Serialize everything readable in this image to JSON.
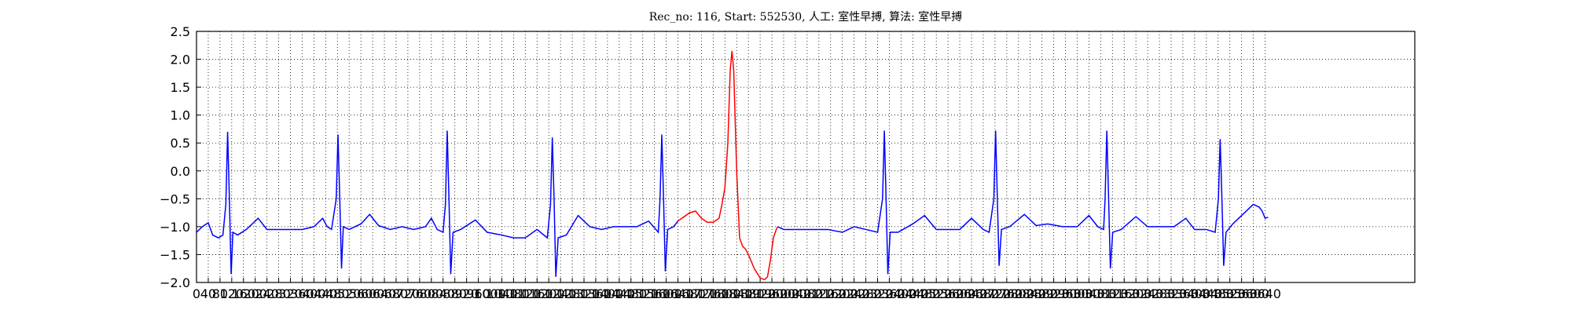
{
  "chart_data": {
    "type": "line",
    "title": "Rec_no: 116, Start: 552530, 人工: 室性早搏, 算法: 室性早搏",
    "xlim": [
      0,
      4150
    ],
    "ylim": [
      -2,
      2.5
    ],
    "xticks": [
      0,
      40,
      80,
      120,
      160,
      200,
      240,
      280,
      320,
      360,
      400,
      440,
      480,
      520,
      560,
      600,
      640,
      680,
      720,
      760,
      800,
      840,
      880,
      920,
      960,
      1000,
      1040,
      1080,
      1120,
      1160,
      1200,
      1240,
      1280,
      1320,
      1360,
      1400,
      1440,
      1480,
      1520,
      1560,
      1600,
      1640,
      1680,
      1720,
      1760,
      1800,
      1840,
      1880,
      1920,
      1960,
      2000,
      2040,
      2080,
      2120,
      2160,
      2200,
      2240,
      2280,
      2320,
      2360,
      2400,
      2440,
      2480,
      2520,
      2560,
      2600,
      2640,
      2680,
      2720,
      2760,
      2800,
      2840,
      2880,
      2920,
      2960,
      3000,
      3040,
      3080,
      3120,
      3160,
      3200,
      3240,
      3280,
      3320,
      3360,
      3400,
      3440,
      3480,
      3520,
      3560,
      3600,
      3640
    ],
    "yticks": [
      {
        "value": -2,
        "label": "−2.0"
      },
      {
        "value": -1.5,
        "label": "−1.5"
      },
      {
        "value": -1,
        "label": "−1.0"
      },
      {
        "value": -0.5,
        "label": "−0.5"
      },
      {
        "value": 0,
        "label": "0.0"
      },
      {
        "value": 0.5,
        "label": "0.5"
      },
      {
        "value": 1,
        "label": "1.0"
      },
      {
        "value": 1.5,
        "label": "1.5"
      },
      {
        "value": 2,
        "label": "2.0"
      },
      {
        "value": 2.5,
        "label": "2.5"
      }
    ],
    "grid": true,
    "series": [
      {
        "color": "#0000ff",
        "x": [
          0,
          20,
          40,
          55,
          75,
          90,
          100,
          106,
          112,
          118,
          124,
          140,
          170,
          210,
          240,
          280,
          320,
          360,
          400,
          430,
          445,
          460,
          476,
          482,
          488,
          494,
          500,
          520,
          560,
          590,
          620,
          660,
          700,
          740,
          780,
          800,
          820,
          840,
          848,
          854,
          860,
          866,
          874,
          900,
          950,
          990,
          1040,
          1080,
          1120,
          1160,
          1195,
          1206,
          1212,
          1218,
          1224,
          1232,
          1260,
          1300,
          1340,
          1380,
          1420,
          1460,
          1500,
          1540,
          1565,
          1573,
          1579,
          1585,
          1591,
          1597,
          1605,
          1625,
          1640,
          1810,
          1980,
          2000,
          2050,
          2100,
          2150,
          2200,
          2240,
          2280,
          2320,
          2337,
          2343,
          2349,
          2355,
          2363,
          2390,
          2440,
          2480,
          2520,
          2560,
          2600,
          2640,
          2680,
          2700,
          2716,
          2722,
          2728,
          2734,
          2742,
          2770,
          2820,
          2860,
          2900,
          2950,
          3000,
          3040,
          3070,
          3090,
          3095,
          3101,
          3107,
          3113,
          3121,
          3150,
          3200,
          3240,
          3290,
          3330,
          3370,
          3400,
          3440,
          3470,
          3481,
          3487,
          3493,
          3499,
          3507,
          3530,
          3560,
          3600,
          3620,
          3630,
          3640,
          3650
        ],
        "values": [
          -1.1,
          -1.0,
          -0.93,
          -1.15,
          -1.2,
          -1.15,
          -0.6,
          0.7,
          -0.5,
          -1.85,
          -1.1,
          -1.15,
          -1.05,
          -0.85,
          -1.05,
          -1.05,
          -1.05,
          -1.05,
          -1.0,
          -0.85,
          -1.0,
          -1.05,
          -0.5,
          0.65,
          -0.5,
          -1.75,
          -1.0,
          -1.05,
          -0.95,
          -0.78,
          -0.98,
          -1.05,
          -1.0,
          -1.05,
          -1.0,
          -0.85,
          -1.05,
          -1.1,
          -0.6,
          0.72,
          -0.5,
          -1.85,
          -1.1,
          -1.05,
          -0.88,
          -1.1,
          -1.15,
          -1.2,
          -1.2,
          -1.05,
          -1.2,
          -0.6,
          0.6,
          -0.5,
          -1.9,
          -1.2,
          -1.15,
          -0.8,
          -1.0,
          -1.05,
          -1.0,
          -1.0,
          -1.0,
          -0.9,
          -1.05,
          -1.1,
          -0.5,
          0.65,
          -0.5,
          -1.8,
          -1.05,
          -1.0,
          -0.9,
          null,
          -1.0,
          -1.05,
          -1.05,
          -1.05,
          -1.05,
          -1.1,
          -1.0,
          -1.05,
          -1.1,
          -0.5,
          0.72,
          -0.5,
          -1.85,
          -1.1,
          -1.1,
          -0.95,
          -0.8,
          -1.05,
          -1.05,
          -1.05,
          -0.85,
          -1.05,
          -1.1,
          -0.5,
          0.72,
          -0.5,
          -1.7,
          -1.05,
          -1.0,
          -0.78,
          -0.98,
          -0.95,
          -1.0,
          -1.0,
          -0.8,
          -1.0,
          -1.05,
          -0.5,
          0.72,
          -0.5,
          -1.75,
          -1.1,
          -1.05,
          -0.82,
          -1.0,
          -1.0,
          -1.0,
          -0.85,
          -1.05,
          -1.05,
          -1.1,
          -0.5,
          0.57,
          -0.5,
          -1.7,
          -1.1,
          -0.95,
          -0.8,
          -0.6,
          -0.65,
          -0.72,
          -0.85,
          -0.83
        ]
      },
      {
        "color": "#ff0000",
        "x": [
          1640,
          1680,
          1700,
          1720,
          1740,
          1760,
          1780,
          1790,
          1800,
          1810,
          1818,
          1824,
          1830,
          1840,
          1850,
          1860,
          1870,
          1880,
          1900,
          1920,
          1935,
          1945,
          1955,
          1965,
          1975,
          1980
        ],
        "values": [
          -0.9,
          -0.75,
          -0.72,
          -0.85,
          -0.92,
          -0.92,
          -0.85,
          -0.6,
          -0.3,
          0.5,
          1.8,
          2.15,
          1.8,
          0.0,
          -1.2,
          -1.35,
          -1.4,
          -1.5,
          -1.75,
          -1.92,
          -1.95,
          -1.9,
          -1.6,
          -1.2,
          -1.05,
          -1.0
        ]
      }
    ]
  }
}
